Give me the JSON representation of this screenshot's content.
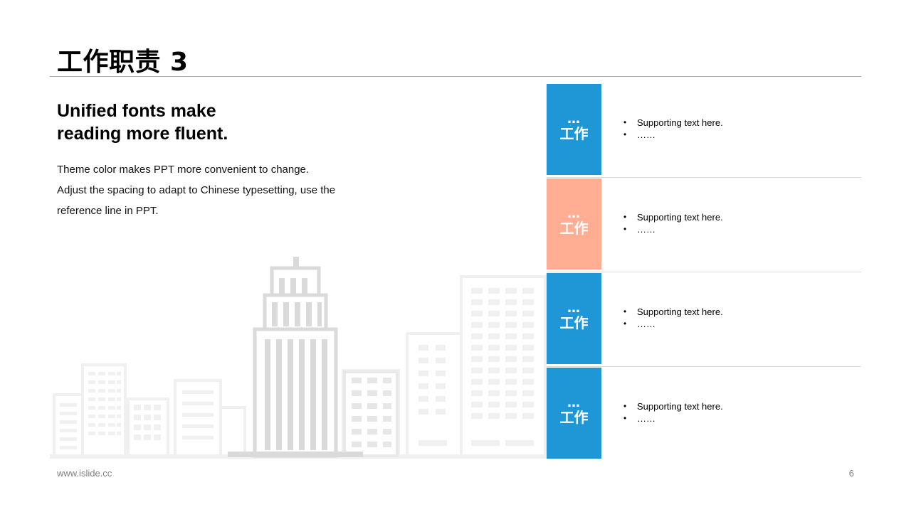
{
  "title": "工作职责 3",
  "headline": {
    "line1": "Unified fonts make",
    "line2": "reading more fluent."
  },
  "body": {
    "line1": "Theme color makes PPT more convenient to change.",
    "line2": "Adjust the spacing to adapt to Chinese typesetting, use the",
    "line3": "reference line in PPT."
  },
  "rows": [
    {
      "dots": "…",
      "label": "工作",
      "color": "#1f96d6",
      "bullets": [
        "Supporting  text here.",
        "……"
      ]
    },
    {
      "dots": "…",
      "label": "工作",
      "color": "#ffae94",
      "bullets": [
        "Supporting  text here.",
        "……"
      ]
    },
    {
      "dots": "…",
      "label": "工作",
      "color": "#1f96d6",
      "bullets": [
        "Supporting  text here.",
        "……"
      ]
    },
    {
      "dots": "…",
      "label": "工作",
      "color": "#1f96d6",
      "bullets": [
        "Supporting  text here.",
        "……"
      ]
    }
  ],
  "footer": {
    "url": "www.islide.cc",
    "page": "6"
  }
}
